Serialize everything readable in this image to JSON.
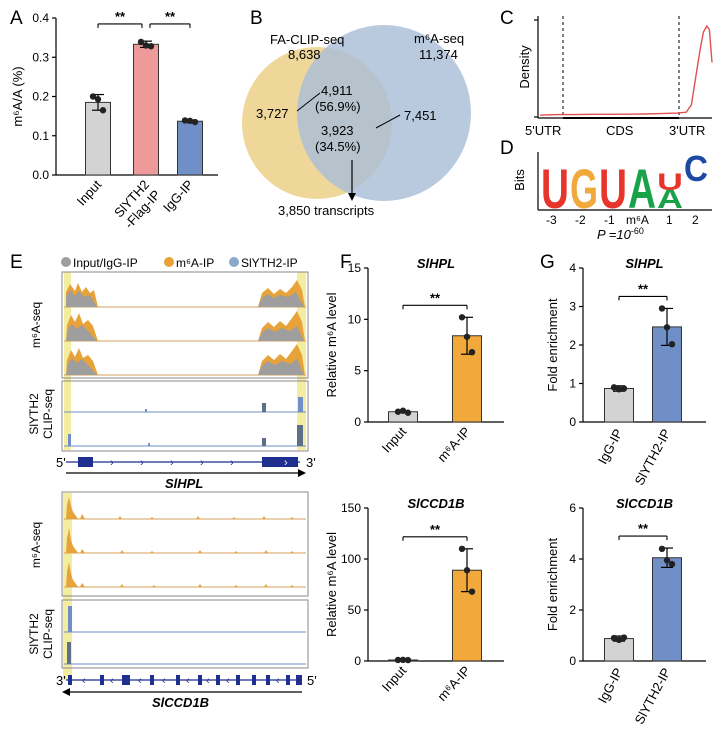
{
  "panel_letters": [
    "A",
    "B",
    "C",
    "D",
    "E",
    "F",
    "G"
  ],
  "chart_data": [
    {
      "panel": "A",
      "type": "bar",
      "ylabel": "m⁶A/A (%)",
      "ylim": [
        0,
        0.4
      ],
      "yticks": [
        "0.0",
        "0.1",
        "0.2",
        "0.3",
        "0.4"
      ],
      "categories": [
        "Input",
        "SlYTH2\n-Flag-IP",
        "IgG-IP"
      ],
      "values": [
        0.185,
        0.333,
        0.137
      ],
      "errors": [
        0.02,
        0.008,
        0.003
      ],
      "points": [
        [
          0.2,
          0.193,
          0.165
        ],
        [
          0.339,
          0.33,
          0.328
        ],
        [
          0.139,
          0.138,
          0.135
        ]
      ],
      "colors": [
        "#d3d3d3",
        "#ee9a9a",
        "#6f8fc6"
      ],
      "significance": [
        {
          "from": 0,
          "to": 1,
          "label": "**"
        },
        {
          "from": 1,
          "to": 2,
          "label": "**"
        }
      ]
    },
    {
      "panel": "C",
      "type": "line",
      "ylabel": "Density",
      "xticks": [
        "5'UTR",
        "CDS",
        "3'UTR"
      ],
      "profile_x": [
        0.0,
        0.05,
        0.1,
        0.2,
        0.3,
        0.4,
        0.5,
        0.6,
        0.7,
        0.8,
        0.85,
        0.88,
        0.9,
        0.93,
        0.95,
        0.97,
        0.985,
        1.0
      ],
      "profile_y": [
        0.15,
        0.18,
        0.2,
        0.2,
        0.22,
        0.22,
        0.23,
        0.25,
        0.28,
        0.32,
        0.4,
        1.0,
        2.8,
        5.5,
        7.0,
        7.5,
        7.2,
        4.5
      ],
      "ylim": [
        0,
        8
      ],
      "color": "#e05050"
    },
    {
      "panel": "F-top",
      "type": "bar",
      "title": "SlHPL",
      "ylabel": "Relative m⁶A level",
      "ylim": [
        0,
        15
      ],
      "yticks": [
        "0",
        "5",
        "10",
        "15"
      ],
      "categories": [
        "Input",
        "m⁶A-IP"
      ],
      "values": [
        1.0,
        8.4
      ],
      "errors": [
        0.1,
        1.8
      ],
      "points": [
        [
          1.0,
          1.1,
          0.9
        ],
        [
          10.2,
          8.3,
          6.8
        ]
      ],
      "colors": [
        "#d3d3d3",
        "#f2a93b"
      ],
      "significance": [
        {
          "from": 0,
          "to": 1,
          "label": "**"
        }
      ]
    },
    {
      "panel": "F-bottom",
      "type": "bar",
      "title": "SlCCD1B",
      "ylabel": "Relative m⁶A level",
      "ylim": [
        0,
        150
      ],
      "yticks": [
        "0",
        "50",
        "100",
        "150"
      ],
      "categories": [
        "Input",
        "m⁶A-IP"
      ],
      "values": [
        1.0,
        89
      ],
      "errors": [
        0.3,
        21
      ],
      "points": [
        [
          1.0,
          1.1,
          0.9
        ],
        [
          110,
          89,
          68
        ]
      ],
      "colors": [
        "#d3d3d3",
        "#f2a93b"
      ],
      "significance": [
        {
          "from": 0,
          "to": 1,
          "label": "**"
        }
      ]
    },
    {
      "panel": "G-top",
      "type": "bar",
      "title": "SlHPL",
      "ylabel": "Fold enrichment",
      "ylim": [
        0,
        4
      ],
      "yticks": [
        "0",
        "1",
        "2",
        "3",
        "4"
      ],
      "categories": [
        "IgG-IP",
        "SlYTH2-IP"
      ],
      "values": [
        0.87,
        2.47
      ],
      "errors": [
        0.07,
        0.48
      ],
      "points": [
        [
          0.9,
          0.85,
          0.87
        ],
        [
          2.95,
          2.46,
          2.02
        ]
      ],
      "colors": [
        "#d3d3d3",
        "#6f8fc6"
      ],
      "significance": [
        {
          "from": 0,
          "to": 1,
          "label": "**"
        }
      ]
    },
    {
      "panel": "G-bottom",
      "type": "bar",
      "title": "SlCCD1B",
      "ylabel": "Fold enrichment",
      "ylim": [
        0,
        6
      ],
      "yticks": [
        "0",
        "2",
        "4",
        "6"
      ],
      "categories": [
        "IgG-IP",
        "SlYTH2-IP"
      ],
      "values": [
        0.88,
        4.05
      ],
      "errors": [
        0.1,
        0.38
      ],
      "points": [
        [
          0.9,
          0.83,
          0.92
        ],
        [
          4.4,
          3.95,
          3.8
        ]
      ],
      "colors": [
        "#d3d3d3",
        "#6f8fc6"
      ],
      "significance": [
        {
          "from": 0,
          "to": 1,
          "label": "**"
        }
      ]
    }
  ],
  "venn": {
    "left_title": "FA-CLIP-seq",
    "left_total": "8,638",
    "right_title": "m⁶A-seq",
    "right_total": "11,374",
    "left_only": "3,727",
    "overlap_top": "4,911",
    "overlap_top_pct": "(56.9%)",
    "overlap_bottom": "3,923",
    "overlap_bottom_pct": "(34.5%)",
    "right_only": "7,451",
    "arrow_label": "3,850 transcripts",
    "left_color": "#efd79a",
    "right_color": "#a9bed8"
  },
  "motif": {
    "ylabel": "Bits",
    "letters": [
      "U",
      "G",
      "U",
      "A",
      "A",
      "U",
      "C"
    ],
    "letter_colors": [
      "#e8352c",
      "#f2a93b",
      "#e8352c",
      "#1aa24a",
      "#1aa24a",
      "#e8352c",
      "#1c4aa3"
    ],
    "xticks": [
      "-3",
      "-2",
      "-1",
      "m⁶A",
      "1",
      "2"
    ],
    "pvalue_prefix": "P =10",
    "pvalue_exp": "-60"
  },
  "tracks": {
    "legend": [
      "Input/IgG-IP",
      "m⁶A-IP",
      "SlYTH2-IP"
    ],
    "legend_colors": [
      "#9e9e9e",
      "#e8a23a",
      "#8aa8c8"
    ],
    "group_labels": {
      "m6a_seq": "m⁶A-seq",
      "clip_line1": "SlYTH2",
      "clip_line2": "CLIP-seq"
    },
    "gene1": {
      "name": "SlHPL",
      "five": "5'",
      "three": "3'"
    },
    "gene2": {
      "name": "SlCCD1B",
      "five": "5'",
      "three": "3'"
    },
    "highlight_color": "#f3eda2"
  },
  "colors": {
    "gene_model": "#1e2f8f",
    "clip_track": "#6f8fc6"
  }
}
